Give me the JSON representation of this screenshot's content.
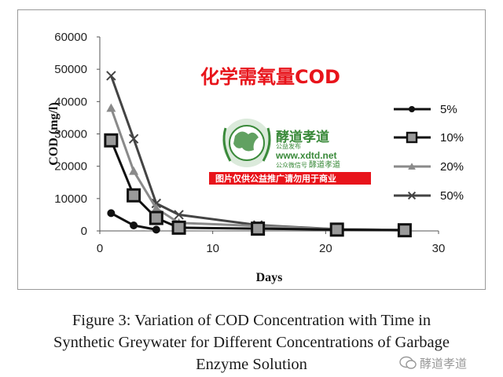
{
  "chart_data": {
    "type": "line",
    "title": "化学需氧量COD",
    "xlabel": "Days",
    "ylabel": "COD (mg/l)",
    "xlim": [
      0,
      30
    ],
    "ylim": [
      0,
      60000
    ],
    "x_ticks": [
      "0",
      "10",
      "20",
      "30"
    ],
    "y_ticks": [
      "0",
      "10000",
      "20000",
      "30000",
      "40000",
      "50000",
      "60000"
    ],
    "grid": false,
    "legend_position": "right",
    "series": [
      {
        "name": "5%",
        "marker": "circle",
        "color": "#111111",
        "x": [
          1,
          3,
          5
        ],
        "values": [
          5500,
          1700,
          400
        ]
      },
      {
        "name": "10%",
        "marker": "square",
        "color": "#111111",
        "x": [
          1,
          3,
          5,
          7,
          14,
          21,
          27
        ],
        "values": [
          28000,
          11000,
          4000,
          1000,
          700,
          400,
          200
        ]
      },
      {
        "name": "20%",
        "marker": "triangle",
        "color": "#8a8a8a",
        "x": [
          1,
          3,
          5,
          7,
          14,
          21,
          27
        ],
        "values": [
          38000,
          18500,
          7000,
          2500,
          1500,
          500,
          300
        ]
      },
      {
        "name": "50%",
        "marker": "x",
        "color": "#444444",
        "x": [
          1,
          3,
          5,
          7,
          14,
          21,
          27
        ],
        "values": [
          48000,
          28500,
          8500,
          5000,
          1800,
          500,
          300
        ]
      }
    ]
  },
  "watermark": {
    "name_cn": "酵道孝道",
    "url": "www.xdtd.net",
    "small_label_1": "公益发布",
    "small_label_2": "公众微信号",
    "name_cn_small": "酵道孝道",
    "banner": "图片仅供公益推广请勿用于商业"
  },
  "caption": {
    "line1": "Figure 3: Variation of COD Concentration with Time in",
    "line2": "Synthetic Greywater for Different Concentrations of Garbage",
    "line3": "Enzyme Solution"
  },
  "corner_badge": {
    "label": "酵道孝道"
  },
  "colors": {
    "title_red": "#e8141b",
    "watermark_green": "#3a8a3a",
    "banner_red": "#e8141b"
  }
}
